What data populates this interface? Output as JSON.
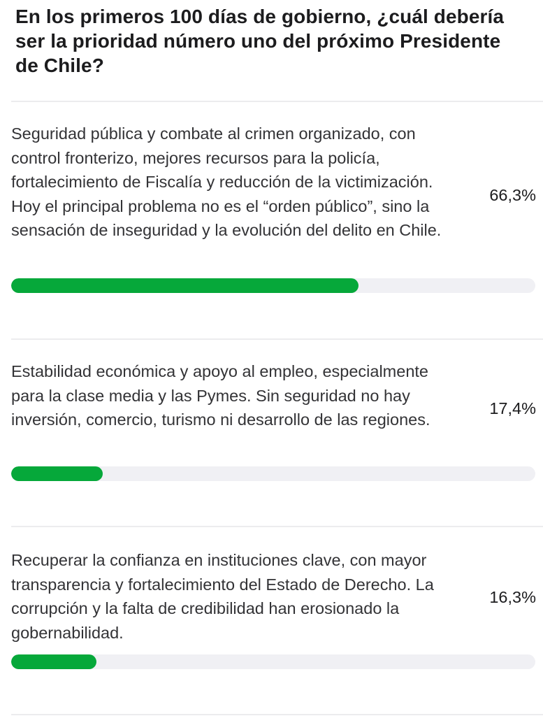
{
  "poll": {
    "question": "En los primeros 100 días de gobierno, ¿cuál debería ser la prioridad número uno del próximo Presidente de Chile?",
    "bar_color": "#06a83a",
    "track_color": "#f0f0f4",
    "options": [
      {
        "text": "Seguridad pública y combate al crimen organizado, con control fronterizo, mejores recursos para la policía, fortalecimiento de Fiscalía y reducción de la victimización. Hoy el principal problema no es el “orden público”, sino la sensación de inseguridad y la evolución del delito en Chile.",
        "percent_label": "66,3%",
        "fill_percent": 66.3
      },
      {
        "text": "Estabilidad económica y apoyo al empleo, especialmente para la clase media y las Pymes. Sin seguridad no hay inversión, comercio, turismo ni desarrollo de las regiones.",
        "percent_label": "17,4%",
        "fill_percent": 17.4
      },
      {
        "text": "Recuperar la confianza en instituciones clave, con mayor transparencia y fortalecimiento del Estado de Derecho. La corrupción y la falta de credibilidad han erosionado la gobernabilidad.",
        "percent_label": "16,3%",
        "fill_percent": 16.3
      }
    ]
  }
}
